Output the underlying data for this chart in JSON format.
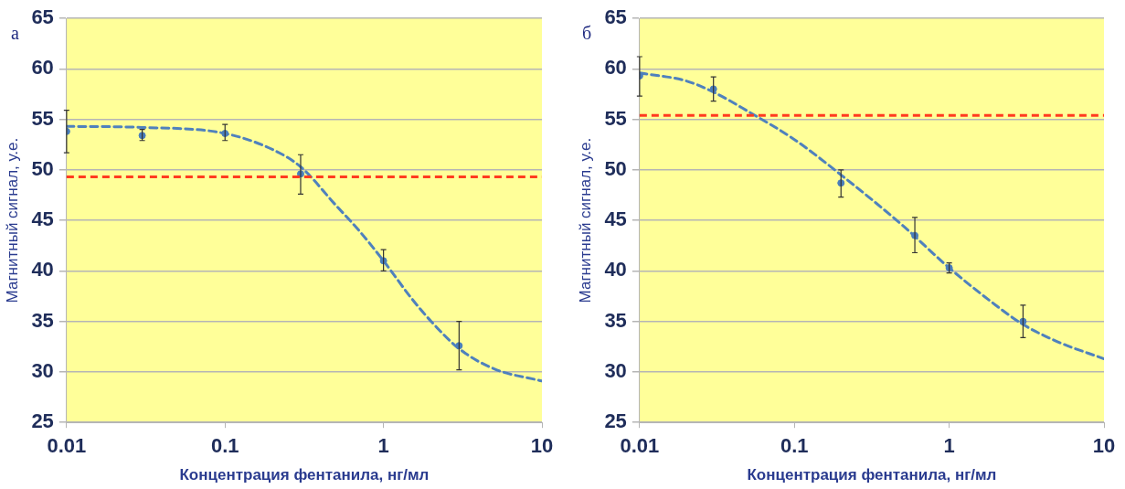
{
  "chart_data": [
    {
      "type": "scatter",
      "title": "а",
      "xlabel": "Концентрация фентанила, нг/мл",
      "ylabel": "Магнитный сигнал, у.е.",
      "log": "x",
      "grid": "y",
      "legend": false,
      "marker": "circle",
      "xlim": [
        0.01,
        10
      ],
      "xticks": [
        0.01,
        0.1,
        1,
        10
      ],
      "ylim": [
        25,
        65
      ],
      "yticks": [
        25,
        30,
        35,
        40,
        45,
        50,
        55,
        60,
        65
      ],
      "series": [
        {
          "color": "#4a7ebb",
          "x": [
            0.01,
            0.03,
            0.1,
            0.3,
            1,
            3
          ],
          "values": [
            53.8,
            53.4,
            53.6,
            49.6,
            41.0,
            32.6
          ],
          "errors": [
            [
              51.7,
              55.9
            ],
            [
              52.9,
              54.0
            ],
            [
              52.9,
              54.5
            ],
            [
              47.6,
              51.5
            ],
            [
              40.0,
              42.1
            ],
            [
              30.2,
              35.0
            ]
          ]
        },
        {
          "type": "line",
          "color": "#4f81bd",
          "line_style": "dashed",
          "marker": "none",
          "x": [
            0.01,
            0.03,
            0.1,
            0.2,
            0.3,
            0.5,
            0.7,
            1,
            1.5,
            2,
            3,
            5,
            10
          ],
          "values": [
            54.3,
            54.2,
            53.6,
            52.0,
            50.3,
            46.5,
            44.0,
            41.0,
            37.3,
            35.0,
            32.3,
            30.3,
            29.1
          ]
        }
      ],
      "ref_lines": [
        {
          "axis": "y",
          "value": 49.3,
          "color": "#ff3b1f",
          "line_style": "dashed"
        }
      ]
    },
    {
      "type": "scatter",
      "title": "б",
      "xlabel": "Концентрация фентанила, нг/мл",
      "ylabel": "Магнитный сигнал, у.е.",
      "log": "x",
      "grid": "y",
      "legend": false,
      "marker": "circle",
      "xlim": [
        0.01,
        10
      ],
      "xticks": [
        0.01,
        0.1,
        1,
        10
      ],
      "ylim": [
        25,
        65
      ],
      "yticks": [
        25,
        30,
        35,
        40,
        45,
        50,
        55,
        60,
        65
      ],
      "series": [
        {
          "color": "#4a7ebb",
          "x": [
            0.01,
            0.03,
            0.2,
            0.6,
            1,
            3
          ],
          "values": [
            59.3,
            58.0,
            48.7,
            43.5,
            40.3,
            35.0
          ],
          "errors": [
            [
              57.3,
              61.2
            ],
            [
              56.8,
              59.2
            ],
            [
              47.3,
              50.0
            ],
            [
              41.8,
              45.3
            ],
            [
              39.8,
              40.8
            ],
            [
              33.4,
              36.6
            ]
          ]
        },
        {
          "type": "line",
          "color": "#4f81bd",
          "line_style": "dashed",
          "marker": "none",
          "x": [
            0.01,
            0.02,
            0.03,
            0.05,
            0.1,
            0.2,
            0.5,
            1,
            2,
            3,
            5,
            10
          ],
          "values": [
            59.6,
            58.8,
            57.7,
            55.8,
            53.0,
            49.5,
            44.5,
            40.3,
            36.6,
            34.7,
            33.0,
            31.3
          ]
        }
      ],
      "ref_lines": [
        {
          "axis": "y",
          "value": 55.4,
          "color": "#ff3b1f",
          "line_style": "dashed"
        }
      ]
    }
  ]
}
